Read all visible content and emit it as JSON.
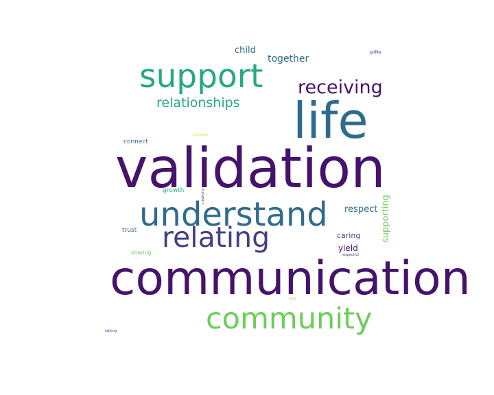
{
  "word_cloud": {
    "words": [
      {
        "text": "validation",
        "color": "#45136b",
        "weight": 1.0
      },
      {
        "text": "communication",
        "color": "#45136b",
        "weight": 0.96
      },
      {
        "text": "life",
        "color": "#2f6b8e",
        "weight": 0.78
      },
      {
        "text": "understand",
        "color": "#2f6b8e",
        "weight": 0.55
      },
      {
        "text": "community",
        "color": "#6dcd59",
        "weight": 0.52
      },
      {
        "text": "support",
        "color": "#26a884",
        "weight": 0.5
      },
      {
        "text": "relating",
        "color": "#433e85",
        "weight": 0.46
      },
      {
        "text": "receiving",
        "color": "#45136b",
        "weight": 0.3
      },
      {
        "text": "relationships",
        "color": "#26a884",
        "weight": 0.22
      },
      {
        "text": "together",
        "color": "#2f6b8e",
        "weight": 0.14
      },
      {
        "text": "child",
        "color": "#2f6b8e",
        "weight": 0.13
      },
      {
        "text": "respect",
        "color": "#2f6b8e",
        "weight": 0.13
      },
      {
        "text": "supporting",
        "color": "#6dcd59",
        "weight": 0.13
      },
      {
        "text": "caring",
        "color": "#433e85",
        "weight": 0.11
      },
      {
        "text": "yield",
        "color": "#45136b",
        "weight": 0.11
      },
      {
        "text": "connect",
        "color": "#2f6b8e",
        "weight": 0.09
      },
      {
        "text": "growth",
        "color": "#26a884",
        "weight": 0.09
      },
      {
        "text": "trust",
        "color": "#2f6b8e",
        "weight": 0.09
      },
      {
        "text": "sharing",
        "color": "#6dcd59",
        "weight": 0.08
      },
      {
        "text": "polite",
        "color": "#45136b",
        "weight": 0.06
      },
      {
        "text": "creativity",
        "color": "#433e85",
        "weight": 0.05
      },
      {
        "text": "respectful",
        "color": "#433e85",
        "weight": 0.05
      },
      {
        "text": "talking",
        "color": "#433e85",
        "weight": 0.05
      },
      {
        "text": "inclusive",
        "color": "#d9e021",
        "weight": 0.05
      },
      {
        "text": "kind",
        "color": "#9ed93a",
        "weight": 0.05
      }
    ]
  }
}
